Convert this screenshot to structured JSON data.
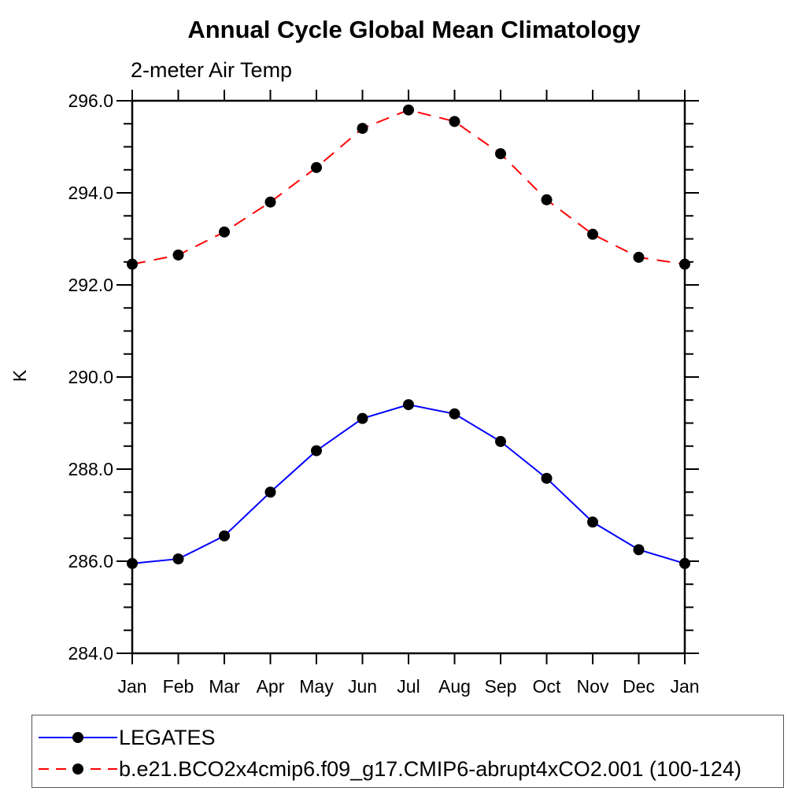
{
  "chart_data": {
    "type": "line",
    "title": "Annual Cycle Global Mean Climatology",
    "subtitle": "2-meter Air Temp",
    "ylabel": "K",
    "xlabel": "",
    "categories": [
      "Jan",
      "Feb",
      "Mar",
      "Apr",
      "May",
      "Jun",
      "Jul",
      "Aug",
      "Sep",
      "Oct",
      "Nov",
      "Dec",
      "Jan"
    ],
    "ylim": [
      284.0,
      296.0
    ],
    "ytick_major_interval": 2.0,
    "ytick_minor_interval": 0.5,
    "ytick_labels": [
      "284.0",
      "286.0",
      "288.0",
      "290.0",
      "292.0",
      "294.0",
      "296.0"
    ],
    "grid": false,
    "legend_position": "bottom",
    "axis_color": "#000000",
    "background_color": "#ffffff",
    "marker": "circle",
    "marker_color": "#000000",
    "series": [
      {
        "name": "LEGATES",
        "color": "#0000ff",
        "line_style": "solid",
        "values": [
          285.95,
          286.05,
          286.55,
          287.5,
          288.4,
          289.1,
          289.4,
          289.2,
          288.6,
          287.8,
          286.85,
          286.25,
          285.95
        ]
      },
      {
        "name": "b.e21.BCO2x4cmip6.f09_g17.CMIP6-abrupt4xCO2.001 (100-124)",
        "color": "#ff0000",
        "line_style": "dashed",
        "values": [
          292.45,
          292.65,
          293.15,
          293.8,
          294.55,
          295.4,
          295.8,
          295.55,
          294.85,
          293.85,
          293.1,
          292.6,
          292.45
        ]
      }
    ]
  }
}
